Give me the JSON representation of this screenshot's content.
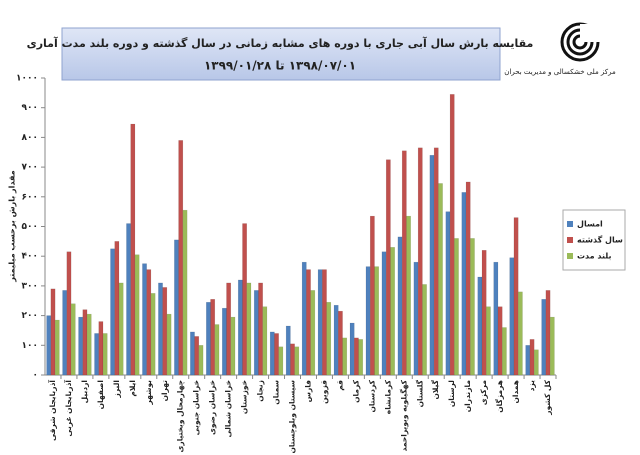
{
  "logo_text": "مرکز ملی خشکسالی و مدیریت بحران",
  "chart_data": {
    "type": "bar",
    "title": "مقایسه بارش سال آبی جاری با دوره های مشابه زمانی در سال گذشته و دوره بلند مدت آماری",
    "subtitle": "۱۳۹۸/۰۷/۰۱ تا ۱۳۹۹/۰۱/۲۸",
    "y_label": "مقدار بارش برحسب میلیمتر",
    "categories": [
      "آذربایجان شرقی",
      "آذربایجان غربی",
      "اردبیل",
      "اصفهان",
      "البرز",
      "ایلام",
      "بوشهر",
      "تهران",
      "چهارمحال وبختیاری",
      "خراسان جنوبی",
      "خراسان رضوی",
      "خراسان شمالی",
      "خوزستان",
      "زنجان",
      "سمنان",
      "سیستان وبلوچستان",
      "فارس",
      "قزوین",
      "قم",
      "کرمان",
      "کردستان",
      "کرمانشاه",
      "کهگیلویه وبویراحمد",
      "گلستان",
      "گیلان",
      "لرستان",
      "مازندران",
      "مرکزی",
      "هرمزگان",
      "همدان",
      "یزد",
      "کل کشور"
    ],
    "series": [
      {
        "name": "امسال",
        "color": "#4f81bd",
        "values": [
          200,
          285,
          195,
          140,
          425,
          510,
          375,
          310,
          455,
          145,
          245,
          225,
          320,
          285,
          145,
          165,
          380,
          355,
          235,
          175,
          365,
          415,
          465,
          380,
          740,
          550,
          615,
          330,
          380,
          395,
          100,
          255
        ]
      },
      {
        "name": "سال گذشته",
        "color": "#c0504d",
        "values": [
          290,
          415,
          220,
          180,
          450,
          845,
          355,
          295,
          790,
          130,
          255,
          310,
          510,
          310,
          140,
          105,
          355,
          355,
          215,
          125,
          535,
          725,
          755,
          765,
          765,
          945,
          650,
          420,
          230,
          530,
          120,
          285
        ]
      },
      {
        "name": "بلند مدت",
        "color": "#9bbb59",
        "values": [
          185,
          240,
          205,
          140,
          310,
          405,
          275,
          205,
          555,
          100,
          170,
          195,
          310,
          230,
          95,
          95,
          285,
          245,
          125,
          120,
          365,
          430,
          535,
          305,
          645,
          460,
          460,
          230,
          160,
          280,
          85,
          195
        ]
      }
    ],
    "ylim": [
      0,
      1000
    ],
    "yticks": [
      {
        "value": 0,
        "label": "۰"
      },
      {
        "value": 100,
        "label": "۱۰۰"
      },
      {
        "value": 200,
        "label": "۲۰۰"
      },
      {
        "value": 300,
        "label": "۳۰۰"
      },
      {
        "value": 400,
        "label": "۴۰۰"
      },
      {
        "value": 500,
        "label": "۵۰۰"
      },
      {
        "value": 600,
        "label": "۶۰۰"
      },
      {
        "value": 700,
        "label": "۷۰۰"
      },
      {
        "value": 800,
        "label": "۸۰۰"
      },
      {
        "value": 900,
        "label": "۹۰۰"
      },
      {
        "value": 1000,
        "label": "۱۰۰۰"
      }
    ],
    "legend": "right"
  }
}
